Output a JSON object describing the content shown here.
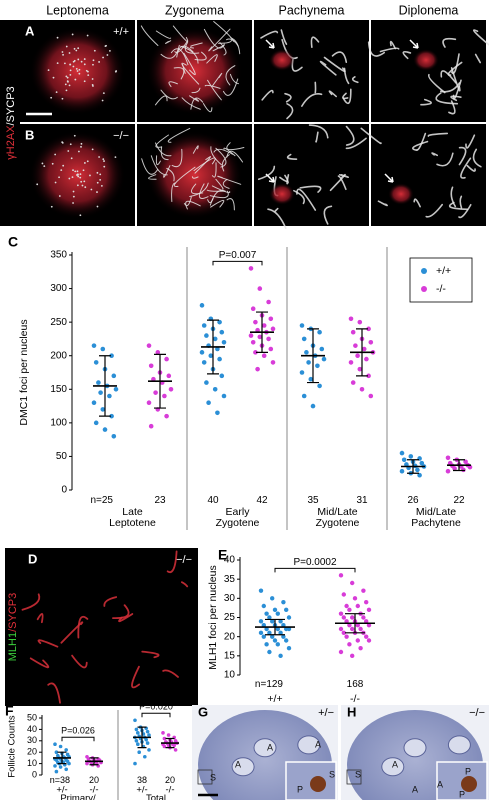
{
  "panels": {
    "headers": [
      "Leptonema",
      "Zygonema",
      "Pachynema",
      "Diplonema"
    ],
    "A": {
      "label": "A",
      "genotype": "+/+"
    },
    "B": {
      "label": "B",
      "genotype": "−/−"
    },
    "stain_ab": [
      "γH2AX",
      "/SYCP3"
    ],
    "D": {
      "label": "D",
      "genotype": "−/−",
      "stain": [
        "MLH1",
        "/SYCP3"
      ]
    },
    "G": {
      "label": "G",
      "genotype": "+/−",
      "marks": [
        "A",
        "A",
        "A",
        "S",
        "S",
        "P"
      ]
    },
    "H": {
      "label": "H",
      "genotype": "−/−",
      "marks": [
        "S",
        "A",
        "A",
        "A",
        "P",
        "P"
      ]
    }
  },
  "chart_data": [
    {
      "type": "dotplot",
      "panel": "C",
      "ylabel": "DMC1 foci per nucleus",
      "ylim": [
        0,
        350
      ],
      "yticks": [
        0,
        50,
        100,
        150,
        200,
        250,
        300,
        350
      ],
      "categories": [
        "Late Leptotene",
        "Early Zygotene",
        "Mid/Late Zygotene",
        "Mid/Late Pachytene"
      ],
      "n_label": "n=",
      "legend": "top right",
      "comparisons": [
        {
          "text": "P=0.007",
          "category": 1
        }
      ],
      "series": [
        {
          "name": "+/+",
          "color": "#2b8fd6",
          "n": [
            25,
            40,
            35,
            26
          ],
          "mean": [
            155,
            213,
            200,
            35
          ],
          "sd": [
            45,
            40,
            40,
            10
          ],
          "points": [
            [
              215,
              210,
              200,
              190,
              180,
              170,
              160,
              155,
              150,
              145,
              140,
              130,
              120,
              110,
              100,
              90,
              80
            ],
            [
              275,
              255,
              250,
              245,
              240,
              235,
              230,
              225,
              220,
              215,
              210,
              205,
              200,
              195,
              190,
              180,
              170,
              160,
              150,
              140,
              130,
              115
            ],
            [
              245,
              240,
              235,
              225,
              215,
              210,
              205,
              200,
              195,
              190,
              185,
              175,
              165,
              155,
              140,
              125
            ],
            [
              55,
              50,
              47,
              45,
              42,
              40,
              38,
              36,
              35,
              33,
              30,
              28,
              25,
              22
            ]
          ]
        },
        {
          "name": "-/-",
          "color": "#d83cd8",
          "n": [
            23,
            42,
            31,
            22
          ],
          "mean": [
            162,
            235,
            205,
            37
          ],
          "sd": [
            40,
            30,
            35,
            8
          ],
          "points": [
            [
              215,
              205,
              195,
              185,
              175,
              170,
              165,
              160,
              150,
              145,
              140,
              130,
              120,
              110,
              95
            ],
            [
              330,
              300,
              280,
              270,
              260,
              255,
              250,
              245,
              240,
              238,
              235,
              230,
              228,
              225,
              220,
              215,
              210,
              205,
              200,
              190,
              180
            ],
            [
              255,
              250,
              240,
              235,
              225,
              220,
              215,
              210,
              205,
              200,
              195,
              190,
              180,
              170,
              160,
              150,
              140
            ],
            [
              48,
              45,
              42,
              40,
              38,
              37,
              36,
              35,
              34,
              32,
              30,
              28
            ]
          ]
        }
      ]
    },
    {
      "type": "dotplot",
      "panel": "E",
      "ylabel": "MLH1 foci per nucleus",
      "ylim": [
        10,
        40
      ],
      "yticks": [
        10,
        15,
        20,
        25,
        30,
        35,
        40
      ],
      "n_label": "n=",
      "comparisons": [
        {
          "text": "P=0.0002",
          "category": 0
        }
      ],
      "series": [
        {
          "name": "+/+",
          "color": "#2b8fd6",
          "n": [
            129
          ],
          "mean": [
            22.5
          ],
          "sd": [
            2
          ],
          "points": [
            [
              32,
              30,
              29,
              28,
              27,
              27,
              26,
              26,
              25,
              25,
              24,
              24,
              24,
              23,
              23,
              23,
              22,
              22,
              22,
              22,
              21,
              21,
              21,
              20,
              20,
              20,
              19,
              19,
              18,
              18,
              17,
              16,
              15
            ]
          ]
        },
        {
          "name": "-/-",
          "color": "#d83cd8",
          "n": [
            168
          ],
          "mean": [
            23.5
          ],
          "sd": [
            2.5
          ],
          "points": [
            [
              36,
              34,
              32,
              31,
              30,
              29,
              28,
              28,
              27,
              27,
              26,
              26,
              25,
              25,
              25,
              24,
              24,
              24,
              23,
              23,
              23,
              22,
              22,
              22,
              21,
              21,
              21,
              20,
              20,
              19,
              19,
              18,
              17,
              16,
              15
            ]
          ]
        }
      ]
    },
    {
      "type": "dotplot",
      "panel": "F",
      "ylabel": "Follicle Counts",
      "ylim": [
        0,
        50
      ],
      "yticks": [
        0,
        10,
        20,
        30,
        40,
        50
      ],
      "categories": [
        "Primary/",
        "Total"
      ],
      "n_label": "n=",
      "comparisons": [
        {
          "text": "P=0.026",
          "category": 0
        },
        {
          "text": "P=0.020",
          "category": 1
        }
      ],
      "series": [
        {
          "name": "+/-",
          "color": "#2b8fd6",
          "n": [
            38,
            38
          ],
          "mean": [
            15,
            33
          ],
          "sd": [
            5,
            9
          ],
          "points": [
            [
              27,
              25,
              22,
              20,
              19,
              18,
              17,
              16,
              16,
              15,
              15,
              14,
              14,
              13,
              13,
              12,
              12,
              11,
              11,
              10,
              10,
              9,
              8,
              7,
              5,
              3
            ],
            [
              48,
              42,
              41,
              40,
              39,
              38,
              37,
              36,
              35,
              34,
              33,
              33,
              32,
              31,
              30,
              29,
              28,
              27,
              25,
              22,
              20,
              16,
              10
            ]
          ]
        },
        {
          "name": "-/-",
          "color": "#d83cd8",
          "n": [
            20,
            20
          ],
          "mean": [
            12,
            28
          ],
          "sd": [
            3,
            4
          ],
          "points": [
            [
              16,
              15,
              14,
              14,
              13,
              13,
              12,
              12,
              11,
              11,
              10,
              10,
              9,
              8
            ],
            [
              37,
              35,
              33,
              32,
              31,
              30,
              29,
              29,
              28,
              28,
              27,
              27,
              26,
              26,
              25,
              24,
              22
            ]
          ]
        }
      ]
    }
  ]
}
